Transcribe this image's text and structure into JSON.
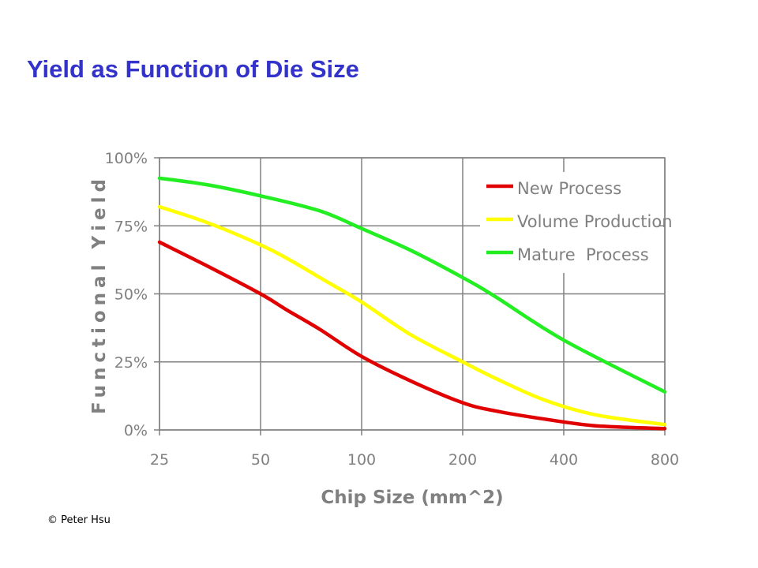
{
  "slide": {
    "title": "Yield as Function of Die Size",
    "copyright": "© Peter Hsu"
  },
  "chart_data": {
    "type": "line",
    "xlabel": "Chip Size (mm^2)",
    "ylabel": "Functional Yield",
    "x_scale": "log2",
    "x_ticks": [
      25,
      50,
      100,
      200,
      400,
      800
    ],
    "x_tick_labels": [
      "25",
      "50",
      "100",
      "200",
      "400",
      "800"
    ],
    "y_ticks": [
      0,
      25,
      50,
      75,
      100
    ],
    "y_tick_labels": [
      "0%",
      "25%",
      "50%",
      "75%",
      "100%"
    ],
    "xlim": [
      25,
      800
    ],
    "ylim": [
      0,
      100
    ],
    "grid": true,
    "legend_position": "top-right",
    "series": [
      {
        "name": "New Process",
        "color": "#E00000",
        "x": [
          25,
          35,
          50,
          60,
          75,
          100,
          140,
          200,
          250,
          350,
          500,
          800
        ],
        "y": [
          69,
          60,
          50,
          44,
          37,
          27,
          18,
          10,
          7,
          4,
          1.5,
          0.5
        ]
      },
      {
        "name": "Volume Production",
        "color": "#FFFF00",
        "x": [
          25,
          35,
          50,
          60,
          80,
          100,
          140,
          200,
          250,
          350,
          500,
          800
        ],
        "y": [
          82,
          76,
          68,
          63,
          54,
          47,
          35,
          25,
          19,
          11,
          5.5,
          2
        ]
      },
      {
        "name": "Mature  Process",
        "color": "#22EE22",
        "x": [
          25,
          35,
          50,
          75,
          100,
          140,
          200,
          250,
          400,
          800
        ],
        "y": [
          92.5,
          90,
          86,
          80.5,
          74,
          66,
          56,
          49,
          33,
          14
        ]
      }
    ]
  }
}
